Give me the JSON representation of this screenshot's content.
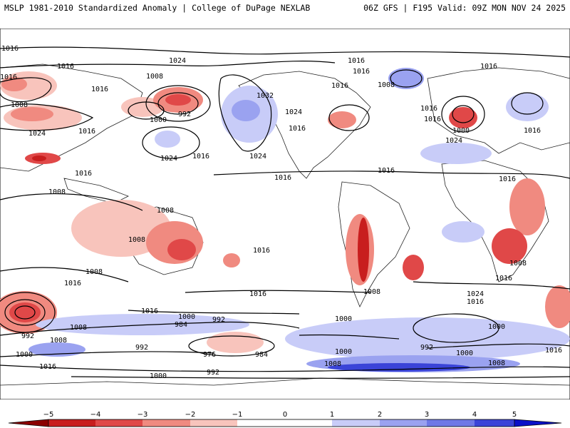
{
  "header": {
    "left_title": "MSLP 1981-2010 Standardized Anomaly | College of DuPage NEXLAB",
    "right_title": "06Z GFS | F195 Valid: 09Z MON NOV 24 2025"
  },
  "contour_labels": [
    "1016",
    "1024",
    "1016",
    "1016",
    "1016",
    "1016",
    "1016",
    "1016",
    "1008",
    "1008",
    "992",
    "1000",
    "1016",
    "1024",
    "1016",
    "1032",
    "1024",
    "1024",
    "1016",
    "1016",
    "1016",
    "1016",
    "1024",
    "1008",
    "1016",
    "1000",
    "1016",
    "1016",
    "1024",
    "1016",
    "1008",
    "1008",
    "1008",
    "1008",
    "1016",
    "1016",
    "1016",
    "1008",
    "1024",
    "1016",
    "1008",
    "1016",
    "1016",
    "1000",
    "992",
    "984",
    "992",
    "976",
    "984",
    "992",
    "1000",
    "1016",
    "1000",
    "992",
    "1008",
    "1008",
    "1000",
    "1000",
    "1016",
    "1016",
    "1000",
    "1000",
    "992",
    "1008",
    "1008"
  ],
  "colors": {
    "neg5": "#8b0000",
    "neg4": "#c81e1e",
    "neg3": "#e04848",
    "neg2": "#f08a80",
    "neg1": "#f8c4bc",
    "pos1": "#c8ccf8",
    "pos2": "#9aa2f0",
    "pos3": "#6e78e6",
    "pos4": "#3a44d8",
    "pos5": "#0a10c8"
  },
  "colorbar": {
    "ticks": [
      "−5",
      "−4",
      "−3",
      "−2",
      "−1",
      "0",
      "1",
      "2",
      "3",
      "4",
      "5"
    ]
  }
}
